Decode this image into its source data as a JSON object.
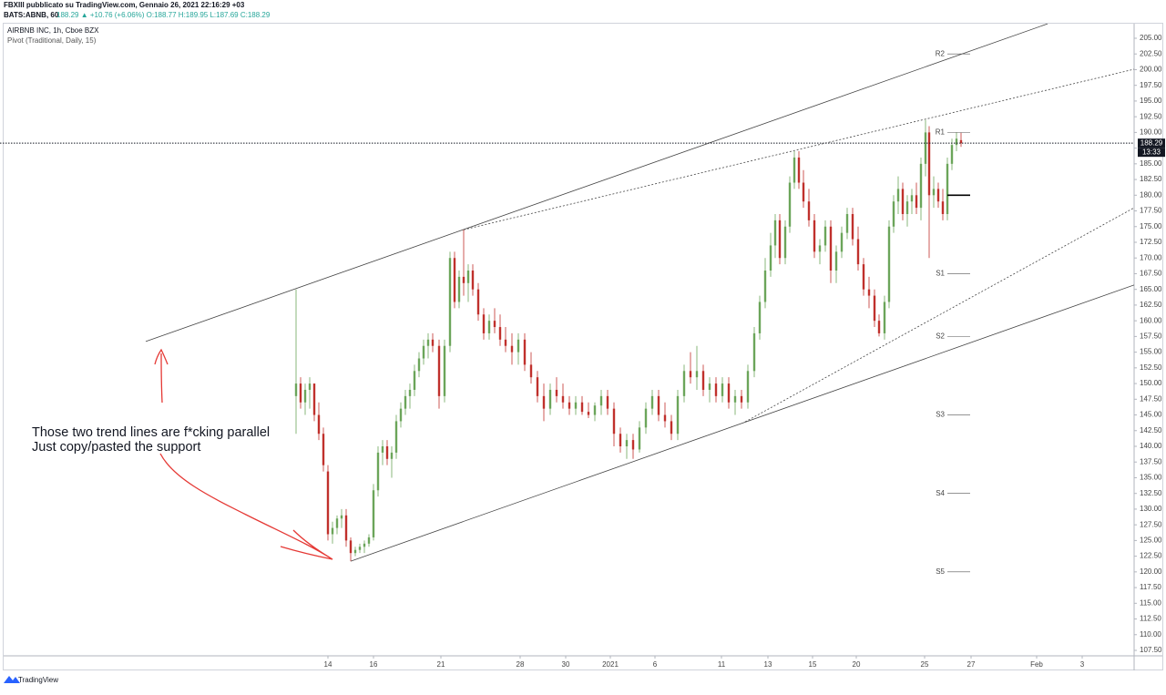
{
  "header": {
    "author": "FBXIII pubblicato su TradingView.com, Gennaio 26, 2021 22:16:29 +03",
    "symbol": "BATS:ABNB, 60",
    "quote": "188.29 ▲ +10.76 (+6.06%) O:188.77 H:189.95 L:187.69 C:188.29"
  },
  "footer": {
    "brand": "TradingView"
  },
  "chart_data": {
    "type": "candlestick",
    "title": "AIRBNB INC, 1h, Cboe BZX",
    "subtitle": "Pivot (Traditional, Daily, 15)",
    "up_color": "#6ba55a",
    "down_color": "#c0302c",
    "x": [
      -1.4,
      -1.2,
      -1,
      -0.8,
      -0.6,
      -0.4,
      -0.2,
      0,
      0.2,
      0.4,
      0.6,
      0.8,
      1,
      1.2,
      1.4,
      1.6,
      1.8,
      2,
      2.2,
      2.4,
      2.6,
      2.8,
      3,
      3.2,
      3.4,
      3.6,
      3.8,
      4,
      4.2,
      4.4,
      4.6,
      4.88,
      5.12,
      5.36,
      5.56,
      5.76,
      5.96,
      6.16,
      6.36,
      6.6,
      6.84,
      7.08,
      7.32,
      7.56,
      7.8,
      8.08,
      8.36,
      8.64,
      8.92,
      9.2,
      9.48,
      9.76,
      10.04,
      10.32,
      10.6,
      10.88,
      11.16,
      11.44,
      11.72,
      12,
      12.28,
      12.56,
      12.84,
      13.12,
      13.4,
      13.68,
      13.96,
      14.24,
      14.52,
      14.8,
      15.08,
      15.36,
      15.64,
      15.92,
      16.2,
      16.48,
      16.76,
      17.04,
      17.32,
      17.6,
      17.88,
      18.16,
      18.44,
      18.72,
      18.96,
      19.2,
      19.44,
      19.64,
      19.84,
      20.08,
      20.28,
      20.48,
      20.68,
      20.88,
      21.12,
      21.36,
      21.6,
      21.84,
      22.08,
      22.32,
      22.56,
      22.8,
      23.04,
      23.28,
      23.52,
      23.76,
      24,
      24.2,
      24.44,
      24.64,
      24.84,
      25.04,
      25.24,
      25.44,
      25.64,
      25.84,
      26.04,
      26.24,
      26.4,
      26.6,
      26.8,
      27,
      27.2,
      27.4,
      27.6,
      27.8
    ],
    "open": [
      148,
      150,
      147,
      149,
      150,
      145,
      142,
      136,
      126,
      127,
      128.5,
      129,
      125,
      123,
      123.5,
      124,
      124.5,
      125.5,
      133,
      139,
      140,
      138,
      139,
      144,
      146,
      148,
      149,
      152,
      154,
      156,
      157,
      156,
      148,
      156,
      170,
      163,
      167,
      166,
      168,
      165,
      161,
      158,
      160,
      159,
      157,
      156,
      155,
      157,
      153,
      151,
      148,
      146,
      149,
      148,
      147,
      146,
      147,
      145.5,
      145,
      146.5,
      148,
      146,
      142,
      140,
      141,
      139.5,
      143,
      146,
      148,
      145,
      144,
      142,
      148,
      152,
      151,
      152,
      149,
      150,
      148,
      150,
      147,
      148,
      147,
      152,
      158,
      163,
      168,
      172,
      176,
      170,
      175,
      182,
      186,
      182,
      179,
      176,
      171,
      172,
      175,
      168,
      171,
      174,
      177,
      173,
      169,
      165,
      164,
      160,
      158,
      163,
      175,
      179,
      181,
      177,
      179,
      180,
      178,
      185,
      190,
      180,
      181,
      179,
      177,
      185,
      188,
      188.77
    ],
    "high": [
      165,
      151,
      150,
      151,
      150,
      147,
      143,
      137,
      128,
      129,
      130,
      130,
      125.5,
      124,
      124.5,
      125,
      126,
      134,
      140,
      141,
      141,
      140,
      145,
      147,
      149,
      150,
      153,
      155,
      157,
      158,
      158,
      157,
      157,
      171,
      171,
      168,
      174.5,
      169,
      169,
      166,
      162,
      161,
      162,
      161,
      159,
      158,
      158,
      158,
      155,
      152,
      150,
      150,
      151,
      150,
      148,
      148,
      148,
      147,
      147,
      149,
      149,
      147,
      143,
      142,
      142,
      144,
      147,
      149,
      149,
      147,
      145,
      149,
      153,
      155,
      156,
      153,
      151,
      151,
      151,
      151,
      149,
      149,
      153,
      159,
      164,
      170,
      174,
      177,
      177,
      176,
      183,
      187,
      187,
      184,
      181,
      177,
      173,
      176,
      176,
      172,
      175,
      178,
      178,
      175,
      170,
      167,
      165,
      161,
      164,
      176,
      180,
      183,
      182,
      180,
      181,
      182,
      186,
      192,
      191,
      183,
      182,
      181,
      186,
      189,
      190,
      189.95
    ],
    "low": [
      142,
      146,
      145,
      146,
      144,
      141,
      136,
      125,
      124.5,
      126,
      127,
      124,
      121.7,
      122.5,
      123,
      123,
      124,
      125,
      132,
      137,
      137,
      135,
      138,
      143,
      145,
      146,
      148,
      151,
      153,
      154,
      155,
      146,
      147,
      155,
      162,
      162,
      164,
      163,
      164,
      160,
      157,
      157,
      158,
      156,
      155,
      153,
      153,
      152,
      150,
      147,
      144,
      145,
      147,
      146,
      145,
      145,
      145,
      144.5,
      144,
      145,
      145,
      140,
      139,
      138,
      138,
      139,
      142,
      145,
      144,
      143,
      141,
      141,
      147,
      150,
      149,
      148,
      147,
      147,
      147,
      146,
      145,
      146,
      146,
      151,
      157,
      162,
      167,
      170,
      169,
      169,
      174,
      181,
      181,
      178,
      175,
      170,
      169,
      171,
      166,
      166,
      170,
      173,
      172,
      168,
      164,
      162,
      159,
      157.5,
      157,
      162,
      174,
      177,
      176,
      175,
      177,
      177,
      176,
      183,
      170,
      178,
      178,
      176,
      176,
      184,
      187,
      187.69
    ],
    "close": [
      150,
      147,
      149,
      150,
      145,
      142,
      137,
      126,
      127,
      128.5,
      129,
      125,
      123,
      123.5,
      124,
      124.5,
      125.5,
      133,
      139,
      140,
      138,
      139,
      144,
      146,
      148,
      149,
      152,
      154,
      156,
      157,
      156,
      148,
      156,
      170,
      163,
      167,
      166,
      168,
      165,
      161,
      158,
      160,
      159,
      157,
      156,
      155,
      157,
      153,
      151,
      148,
      146,
      149,
      148,
      147,
      146,
      147,
      145.5,
      145,
      146.5,
      148,
      146,
      142,
      140,
      141,
      139.5,
      143,
      146,
      148,
      145,
      144,
      142,
      148,
      152,
      151,
      152,
      149,
      150,
      148,
      150,
      147,
      148,
      147,
      152,
      158,
      163,
      168,
      172,
      176,
      170,
      175,
      182,
      186,
      182,
      179,
      176,
      171,
      172,
      175,
      168,
      171,
      174,
      177,
      173,
      169,
      165,
      164,
      160,
      158,
      163,
      175,
      179,
      181,
      177,
      179,
      180,
      178,
      185,
      190,
      180,
      181,
      179,
      177,
      185,
      188,
      189,
      188.29
    ],
    "last_price_time": "13:33",
    "xlim": [
      -14.4,
      35.4
    ],
    "xticks": [
      {
        "value": 0,
        "label": "14"
      },
      {
        "value": 2,
        "label": "16"
      },
      {
        "value": 4.96,
        "label": "21"
      },
      {
        "value": 8.44,
        "label": "28"
      },
      {
        "value": 10.44,
        "label": "30"
      },
      {
        "value": 12.4,
        "label": "2021"
      },
      {
        "value": 14.36,
        "label": "6"
      },
      {
        "value": 17.28,
        "label": "11"
      },
      {
        "value": 19.32,
        "label": "13"
      },
      {
        "value": 21.28,
        "label": "15"
      },
      {
        "value": 23.2,
        "label": "20"
      },
      {
        "value": 26.2,
        "label": "25"
      },
      {
        "value": 28.24,
        "label": "27"
      },
      {
        "value": 31.12,
        "label": "Feb"
      },
      {
        "value": 33.12,
        "label": "3"
      }
    ],
    "ylim": [
      106.63,
      206.74
    ],
    "yticks": [
      {
        "value": 107.5,
        "label": "107.50"
      },
      {
        "value": 110,
        "label": "110.00"
      },
      {
        "value": 112.5,
        "label": "112.50"
      },
      {
        "value": 115,
        "label": "115.00"
      },
      {
        "value": 117.5,
        "label": "117.50"
      },
      {
        "value": 120,
        "label": "120.00"
      },
      {
        "value": 122.5,
        "label": "122.50"
      },
      {
        "value": 125,
        "label": "125.00"
      },
      {
        "value": 127.5,
        "label": "127.50"
      },
      {
        "value": 130,
        "label": "130.00"
      },
      {
        "value": 132.5,
        "label": "132.50"
      },
      {
        "value": 135,
        "label": "135.00"
      },
      {
        "value": 137.5,
        "label": "137.50"
      },
      {
        "value": 140,
        "label": "140.00"
      },
      {
        "value": 142.5,
        "label": "142.50"
      },
      {
        "value": 145,
        "label": "145.00"
      },
      {
        "value": 147.5,
        "label": "147.50"
      },
      {
        "value": 150,
        "label": "150.00"
      },
      {
        "value": 152.5,
        "label": "152.50"
      },
      {
        "value": 155,
        "label": "155.00"
      },
      {
        "value": 157.5,
        "label": "157.50"
      },
      {
        "value": 160,
        "label": "160.00"
      },
      {
        "value": 162.5,
        "label": "162.50"
      },
      {
        "value": 165,
        "label": "165.00"
      },
      {
        "value": 167.5,
        "label": "167.50"
      },
      {
        "value": 170,
        "label": "170.00"
      },
      {
        "value": 172.5,
        "label": "172.50"
      },
      {
        "value": 175,
        "label": "175.00"
      },
      {
        "value": 177.5,
        "label": "177.50"
      },
      {
        "value": 180,
        "label": "180.00"
      },
      {
        "value": 182.5,
        "label": "182.50"
      },
      {
        "value": 185,
        "label": "185.00"
      },
      {
        "value": 187.5,
        "label": "187.50"
      },
      {
        "value": 190,
        "label": "190.00"
      },
      {
        "value": 192.5,
        "label": "192.50"
      },
      {
        "value": 195,
        "label": "195.00"
      },
      {
        "value": 197.5,
        "label": "197.50"
      },
      {
        "value": 200,
        "label": "200.00"
      },
      {
        "value": 202.5,
        "label": "202.50"
      },
      {
        "value": 205,
        "label": "205.00"
      }
    ],
    "pivots": [
      {
        "label": "R2",
        "value": 202.5
      },
      {
        "label": "R1",
        "value": 190
      },
      {
        "value": 180
      },
      {
        "label": "S1",
        "value": 167.5
      },
      {
        "label": "S2",
        "value": 157.5
      },
      {
        "label": "S3",
        "value": 145
      },
      {
        "label": "S4",
        "value": 132.5
      },
      {
        "label": "S5",
        "value": 120
      }
    ],
    "trend_lines": [
      {
        "x": [
          -8,
          31.6
        ],
        "y": [
          156.7,
          207.3
        ],
        "style": "solid"
      },
      {
        "x": [
          5.96,
          35.4
        ],
        "y": [
          174.5,
          200.07
        ],
        "style": "dotted"
      },
      {
        "x": [
          1,
          35.4
        ],
        "y": [
          121.7,
          165.7
        ],
        "style": "solid"
      },
      {
        "x": [
          18.32,
          35.4
        ],
        "y": [
          143.9,
          178
        ],
        "style": "dotted"
      }
    ],
    "annotation": [
      "Those two trend lines are f*cking parallel",
      "Just copy/pasted the support"
    ]
  }
}
